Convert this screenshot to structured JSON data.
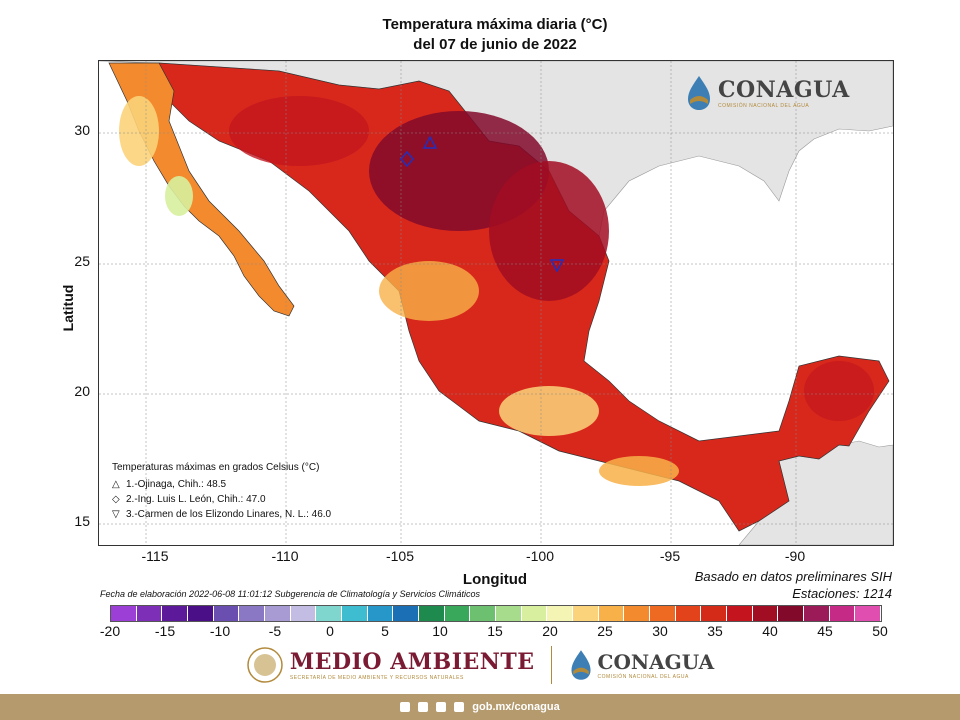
{
  "header": {
    "title_line1": "Temperatura máxima diaria (°C)",
    "title_line2": "del 07 de junio de 2022"
  },
  "map": {
    "x_axis_label": "Longitud",
    "y_axis_label": "Latitud",
    "x_ticks": [
      "-115",
      "-110",
      "-105",
      "-100",
      "-95",
      "-90"
    ],
    "y_ticks": [
      "30",
      "25",
      "20",
      "15"
    ],
    "logo": {
      "name": "CONAGUA",
      "subtitle": "COMISIÓN NACIONAL DEL AGUA"
    }
  },
  "legend": {
    "title": "Temperaturas máximas en grados Celsius (°C)",
    "items": [
      {
        "symbol": "△",
        "text": "1.-Ojinaga, Chih.: 48.5"
      },
      {
        "symbol": "◇",
        "text": "2.-Ing. Luis L. León, Chih.: 47.0"
      },
      {
        "symbol": "▽",
        "text": "3.-Carmen de los Elizondo Linares, N. L.: 46.0"
      }
    ]
  },
  "notes": {
    "fecha": "Fecha de elaboración 2022-06-08 11:01:12 Subgerencia de Climatología y Servicios Climáticos",
    "basado": "Basado en datos preliminares SIH",
    "estaciones": "Estaciones:  1214"
  },
  "colorbar": {
    "tick_labels": [
      "-20",
      "-15",
      "-10",
      "-5",
      "0",
      "5",
      "10",
      "15",
      "20",
      "25",
      "30",
      "35",
      "40",
      "45",
      "50"
    ],
    "colors": [
      "#9b3fd6",
      "#7d2fb8",
      "#5c1a9a",
      "#4a0f86",
      "#6a4fb0",
      "#8a78c4",
      "#a89ad2",
      "#c3bde3",
      "#7fd6cf",
      "#3fbdd0",
      "#2796c8",
      "#1b6fb4",
      "#1f8a4e",
      "#39a85b",
      "#6cc070",
      "#a6dc8c",
      "#d8ef9f",
      "#f4f4b4",
      "#fbd37a",
      "#f8b048",
      "#f48a2e",
      "#ee6a23",
      "#e3431b",
      "#d42a18",
      "#c4151e",
      "#a10d22",
      "#82092a",
      "#9a1b58",
      "#c42a86",
      "#e04fb0"
    ]
  },
  "stations": [
    {
      "name": "Ojinaga",
      "lon": -104.4,
      "lat": 29.6,
      "shape": "triangle-up"
    },
    {
      "name": "Ing. Luis L. León",
      "lon": -105.2,
      "lat": 29.0,
      "shape": "diamond"
    },
    {
      "name": "Carmen de los Elizondo Linares",
      "lon": -99.4,
      "lat": 24.9,
      "shape": "triangle-down"
    }
  ],
  "footer": {
    "medio_ambiente": "MEDIO AMBIENTE",
    "medio_ambiente_sub": "SECRETARÍA DE MEDIO AMBIENTE Y RECURSOS NATURALES",
    "conagua": "CONAGUA",
    "conagua_sub": "COMISIÓN NACIONAL DEL AGUA",
    "url": "gob.mx/conagua"
  }
}
